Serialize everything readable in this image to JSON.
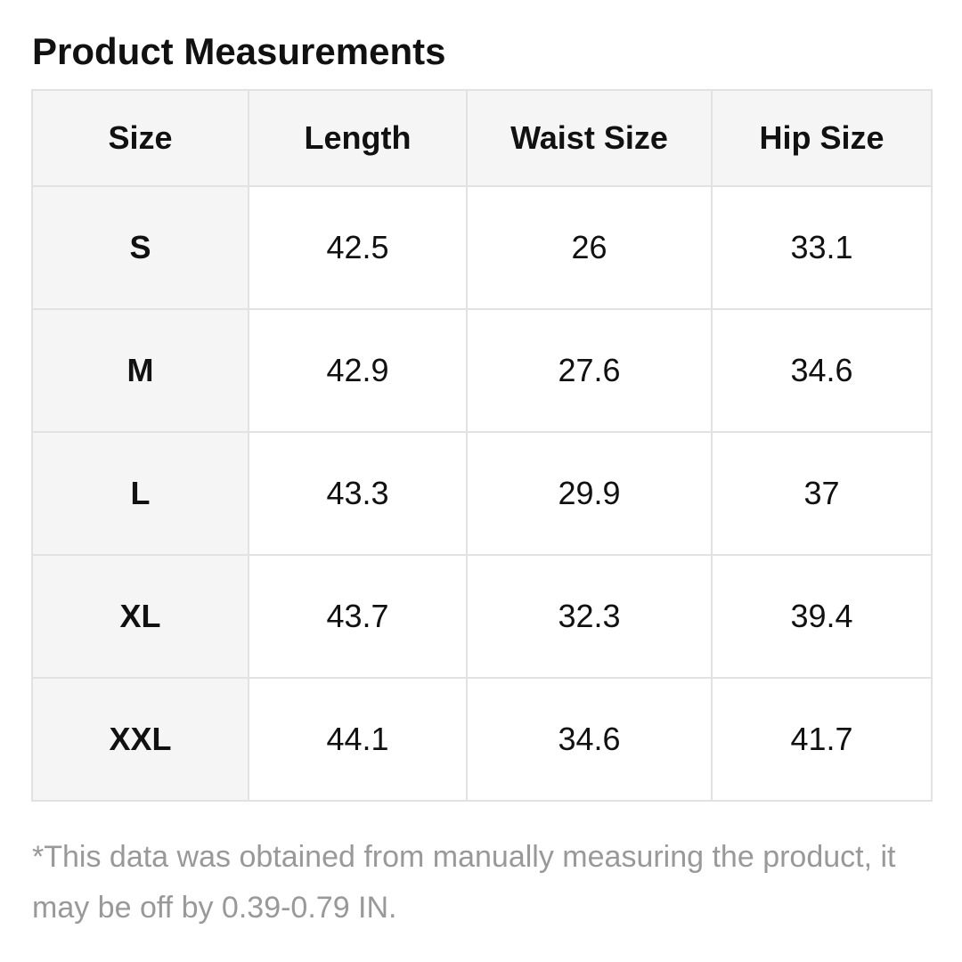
{
  "title": "Product Measurements",
  "table": {
    "headers": [
      "Size",
      "Length",
      "Waist Size",
      "Hip Size"
    ],
    "rows": [
      {
        "size": "S",
        "length": "42.5",
        "waist": "26",
        "hip": "33.1"
      },
      {
        "size": "M",
        "length": "42.9",
        "waist": "27.6",
        "hip": "34.6"
      },
      {
        "size": "L",
        "length": "43.3",
        "waist": "29.9",
        "hip": "37"
      },
      {
        "size": "XL",
        "length": "43.7",
        "waist": "32.3",
        "hip": "39.4"
      },
      {
        "size": "XXL",
        "length": "44.1",
        "waist": "34.6",
        "hip": "41.7"
      }
    ]
  },
  "note": "*This data was obtained from manually measuring the product, it may be off by 0.39-0.79 IN.",
  "colors": {
    "header_bg": "#f5f5f5",
    "border": "#e2e2e2",
    "note_text": "#999999"
  }
}
